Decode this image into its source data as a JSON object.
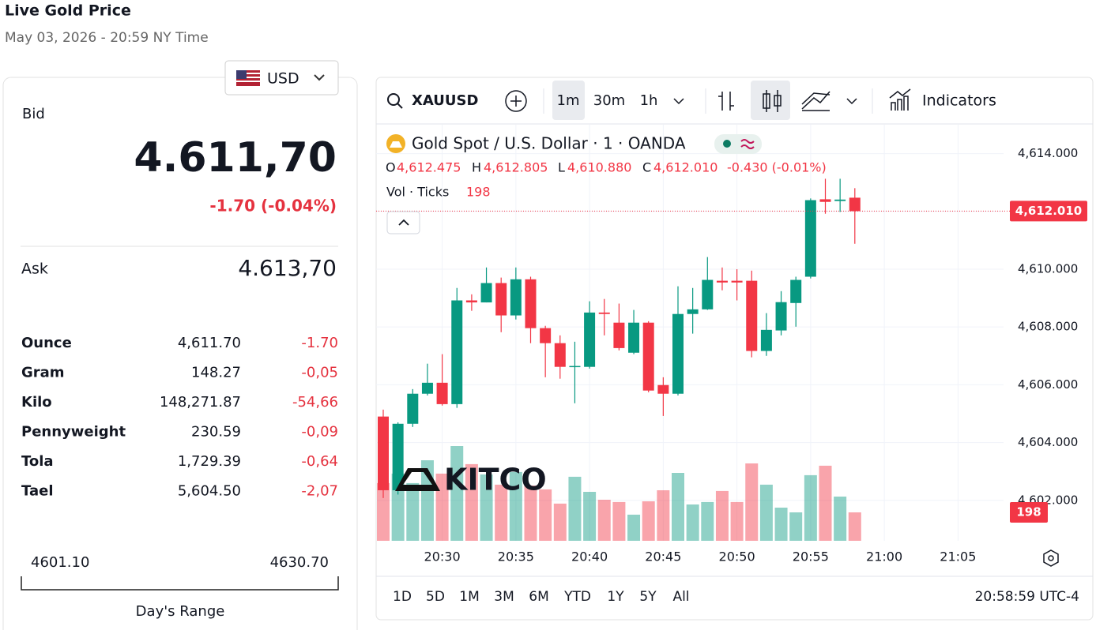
{
  "header": {
    "title": "Live Gold Price",
    "timestamp": "May 03, 2026 - 20:59 NY Time"
  },
  "quote": {
    "currency": "USD",
    "bid_label": "Bid",
    "bid": "4.611,70",
    "bid_change": "-1.70 (-0.04%)",
    "ask_label": "Ask",
    "ask": "4.613,70",
    "rows": [
      [
        "Ounce",
        "4,611.70",
        "-1.70"
      ],
      [
        "Gram",
        "148.27",
        "-0,05"
      ],
      [
        "Kilo",
        "148,271.87",
        "-54,66"
      ],
      [
        "Pennyweight",
        "230.59",
        "-0,09"
      ],
      [
        "Tola",
        "1,729.39",
        "-0,64"
      ],
      [
        "Tael",
        "5,604.50",
        "-2,07"
      ]
    ],
    "range_low": "4601.10",
    "range_high": "4630.70",
    "range_label": "Day's Range"
  },
  "toolbar": {
    "symbol": "XAUUSD",
    "intervals": [
      "1m",
      "30m",
      "1h"
    ],
    "indicators": "Indicators"
  },
  "chart_data": {
    "type": "candlestick",
    "title": "Gold Spot / U.S. Dollar · 1 · OANDA",
    "legend": {
      "o": "O",
      "open": "4,612.475",
      "h": "H",
      "high": "4,612.805",
      "l": "L",
      "low": "4,610.880",
      "c": "C",
      "close": "4,612.010",
      "change": "-0.430 (-0.01%)",
      "volume_label": "Vol · Ticks"
    },
    "last_price_label": "4,612.010",
    "watermark": "KITCO",
    "up_color": "#089981",
    "down_color": "#f23645",
    "grid": true,
    "x": [
      "20:26",
      "20:27",
      "20:28",
      "20:29",
      "20:30",
      "20:31",
      "20:32",
      "20:33",
      "20:34",
      "20:35",
      "20:36",
      "20:37",
      "20:38",
      "20:39",
      "20:40",
      "20:41",
      "20:42",
      "20:43",
      "20:44",
      "20:45",
      "20:46",
      "20:47",
      "20:48",
      "20:49",
      "20:50",
      "20:51",
      "20:52",
      "20:53",
      "20:54",
      "20:55",
      "20:56",
      "20:57",
      "20:58"
    ],
    "xticks": [
      "20:30",
      "20:35",
      "20:40",
      "20:45",
      "20:50",
      "20:55",
      "21:00",
      "21:05"
    ],
    "open": [
      4604.9,
      4602.35,
      4604.65,
      4605.69,
      4606.07,
      4605.33,
      4608.92,
      4608.85,
      4609.52,
      4608.4,
      4609.65,
      4607.96,
      4607.44,
      4606.62,
      4606.62,
      4608.5,
      4608.15,
      4607.11,
      4608.15,
      4605.99,
      4605.69,
      4608.45,
      4608.61,
      4609.6,
      4609.6,
      4609.6,
      4607.17,
      4607.88,
      4608.83,
      4609.74,
      4612.42,
      4612.36,
      4612.475
    ],
    "high": [
      4605.14,
      4604.7,
      4605.85,
      4606.73,
      4607.06,
      4609.35,
      4609.13,
      4610.06,
      4609.71,
      4610.06,
      4609.74,
      4608.04,
      4607.71,
      4607.49,
      4608.89,
      4608.97,
      4608.81,
      4608.59,
      4608.2,
      4606.26,
      4609.41,
      4609.35,
      4610.42,
      4610.06,
      4610.0,
      4609.95,
      4608.48,
      4609.24,
      4609.74,
      4612.45,
      4613.13,
      4613.13,
      4612.805
    ],
    "low": [
      4602.08,
      4602.2,
      4604.54,
      4605.63,
      4605.28,
      4605.2,
      4608.56,
      4608.85,
      4607.82,
      4608.26,
      4607.44,
      4606.26,
      4606.21,
      4605.36,
      4606.56,
      4607.71,
      4607.19,
      4607.06,
      4605.74,
      4604.92,
      4605.63,
      4607.77,
      4608.59,
      4609.27,
      4608.92,
      4606.95,
      4607.0,
      4607.71,
      4608.01,
      4609.68,
      4611.92,
      4611.98,
      4610.88
    ],
    "close": [
      4602.35,
      4604.65,
      4605.69,
      4606.07,
      4605.33,
      4608.92,
      4608.85,
      4609.52,
      4608.4,
      4609.65,
      4607.96,
      4607.44,
      4606.62,
      4606.65,
      4608.5,
      4608.45,
      4607.27,
      4608.15,
      4605.8,
      4605.69,
      4608.45,
      4608.61,
      4609.63,
      4609.54,
      4609.54,
      4607.17,
      4607.9,
      4608.86,
      4609.63,
      4612.39,
      4612.33,
      4612.41,
      4612.01
    ],
    "volume": [
      402,
      468,
      402,
      561,
      468,
      660,
      534,
      462,
      391,
      479,
      385,
      358,
      259,
      446,
      341,
      286,
      270,
      182,
      275,
      352,
      473,
      253,
      270,
      347,
      270,
      539,
      391,
      231,
      198,
      457,
      523,
      308,
      198
    ],
    "ylim": [
      4600.6,
      4615.0
    ],
    "yticks": [
      {
        "value": 4602,
        "label": "4,602.000"
      },
      {
        "value": 4604,
        "label": "4,604.000"
      },
      {
        "value": 4606,
        "label": "4,606.000"
      },
      {
        "value": 4608,
        "label": "4,608.000"
      },
      {
        "value": 4610,
        "label": "4,610.000"
      },
      {
        "value": 4612,
        "label": "4,612.000"
      },
      {
        "value": 4614,
        "label": "4,614.000"
      }
    ],
    "volume_ylim": [
      0,
      1100
    ]
  },
  "footer": {
    "ranges": [
      "1D",
      "5D",
      "1M",
      "3M",
      "6M",
      "YTD",
      "1Y",
      "5Y",
      "All"
    ],
    "clock": "20:58:59 UTC-4"
  }
}
